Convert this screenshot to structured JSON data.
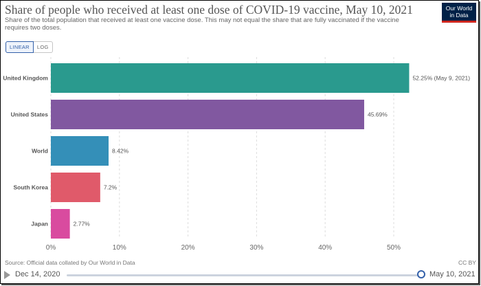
{
  "header": {
    "title": "Share of people who received at least one dose of COVID-19 vaccine, May 10, 2021",
    "subtitle": "Share of the total population that received at least one vaccine dose. This may not equal the share that are fully vaccinated if the vaccine requires two doses.",
    "logo_line1": "Our World",
    "logo_line2": "in Data"
  },
  "controls": {
    "linear_label": "LINEAR",
    "log_label": "LOG"
  },
  "chart_data": {
    "type": "bar",
    "orientation": "horizontal",
    "title": "Share of people who received at least one dose of COVID-19 vaccine, May 10, 2021",
    "categories": [
      "United Kingdom",
      "United States",
      "World",
      "South Korea",
      "Japan"
    ],
    "values": [
      52.25,
      45.69,
      8.42,
      7.2,
      2.77
    ],
    "value_labels": [
      "52.25% (May 9, 2021)",
      "45.69%",
      "8.42%",
      "7.2%",
      "2.77%"
    ],
    "colors": [
      "#2a9a8e",
      "#8158a0",
      "#348fb8",
      "#e05a6a",
      "#d94b9f"
    ],
    "xlim": [
      0,
      55
    ],
    "xticks": [
      0,
      10,
      20,
      30,
      40,
      50
    ],
    "xtick_labels": [
      "0%",
      "10%",
      "20%",
      "30%",
      "40%",
      "50%"
    ],
    "grid": true
  },
  "footer": {
    "source": "Source: Official data collated by Our World in Data",
    "license": "CC BY"
  },
  "timeline": {
    "start_label": "Dec 14, 2020",
    "end_label": "May 10, 2021"
  }
}
